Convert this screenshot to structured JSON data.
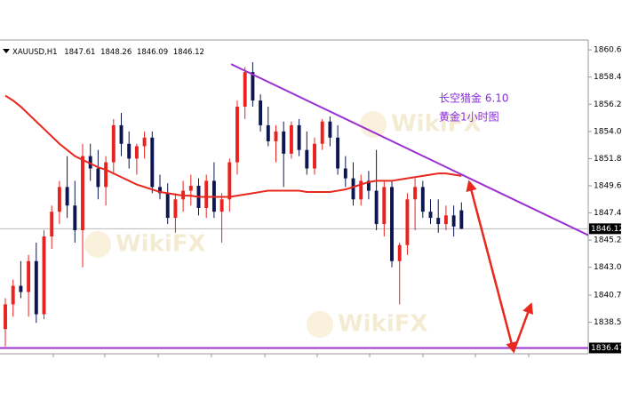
{
  "chart_data": {
    "type": "candlestick",
    "title": "XAUUSD,H1",
    "annotation": [
      "长空猎金  6.10",
      "黄金1小时图"
    ],
    "watermark": "WikiFX",
    "xlim": [
      -0.69,
      75.4
    ],
    "ylim": [
      1836.0,
      1861.4
    ],
    "yticks": [
      {
        "value": 1860.6,
        "label": "1860.60"
      },
      {
        "value": 1858.4,
        "label": "1858.40"
      },
      {
        "value": 1856.2,
        "label": "1856.20"
      },
      {
        "value": 1854,
        "label": "1854.00"
      },
      {
        "value": 1851.8,
        "label": "1851.80"
      },
      {
        "value": 1849.6,
        "label": "1849.60"
      },
      {
        "value": 1847.4,
        "label": "1847.40"
      },
      {
        "value": 1845.2,
        "label": "1845.20"
      },
      {
        "value": 1843,
        "label": "1843.00"
      },
      {
        "value": 1840.75,
        "label": "1840.75"
      },
      {
        "value": 1838.55,
        "label": "1838.55"
      }
    ],
    "up_color": "#e8221e",
    "down_color": "#0d1650",
    "candles": {
      "open": [
        1838,
        1840,
        1841.5,
        1841,
        1843.5,
        1839.2,
        1845.5,
        1847.5,
        1849.5,
        1848,
        1846,
        1852,
        1851,
        1849.5,
        1851.5,
        1854.5,
        1853,
        1851.8,
        1852.8,
        1853.5,
        1849.5,
        1849,
        1847,
        1848.5,
        1849.2,
        1849.6,
        1847.8,
        1850,
        1847.5,
        1848.5,
        1851.5,
        1856,
        1858.8,
        1856.5,
        1854.5,
        1853.2,
        1854,
        1852.2,
        1854.5,
        1852.5,
        1851,
        1853,
        1854.8,
        1853.5,
        1851,
        1850.2,
        1848.5,
        1850,
        1849.2,
        1846.5,
        1849.5,
        1843.5,
        1844.8,
        1848.5,
        1849.5,
        1847.5,
        1847,
        1846.5,
        1847.2,
        1847.61
      ],
      "high": [
        1840.5,
        1842,
        1843.5,
        1844,
        1845,
        1846,
        1848,
        1850,
        1852,
        1850,
        1853,
        1853,
        1852.5,
        1852,
        1855,
        1855.5,
        1854,
        1853,
        1854,
        1854,
        1850.5,
        1849.8,
        1849,
        1850,
        1850.5,
        1850.2,
        1850.5,
        1851.5,
        1849,
        1851.8,
        1856.5,
        1859.2,
        1859.6,
        1857,
        1856,
        1854.5,
        1854.8,
        1854.8,
        1855,
        1854,
        1853.5,
        1855,
        1855.2,
        1854.5,
        1852,
        1851.5,
        1850.5,
        1850.8,
        1852.5,
        1850,
        1850,
        1845,
        1849,
        1850.2,
        1850,
        1848.5,
        1848.5,
        1848,
        1848,
        1848.26
      ],
      "low": [
        1836.6,
        1839,
        1840.5,
        1839,
        1838.5,
        1838.8,
        1844.5,
        1846.5,
        1847,
        1845,
        1843,
        1850,
        1848.5,
        1848,
        1850.5,
        1852,
        1851,
        1850.5,
        1851.8,
        1849,
        1848.5,
        1846.5,
        1845.8,
        1847.5,
        1848,
        1847.2,
        1847,
        1847,
        1845,
        1847.5,
        1850.5,
        1855,
        1856,
        1854,
        1852.8,
        1851.5,
        1849.5,
        1851.8,
        1852,
        1850.5,
        1850.5,
        1852.5,
        1852.8,
        1850.5,
        1849.5,
        1848,
        1848,
        1848.5,
        1846,
        1845.5,
        1843,
        1840,
        1844,
        1846,
        1847,
        1846.5,
        1845.8,
        1846,
        1845.5,
        1846.09
      ],
      "close": [
        1840,
        1841.5,
        1841,
        1843.5,
        1839.2,
        1845.5,
        1847.5,
        1849.5,
        1848,
        1846,
        1852,
        1851,
        1849.5,
        1851.5,
        1854.5,
        1853,
        1851.8,
        1852.8,
        1853.5,
        1849.5,
        1849,
        1847,
        1848.5,
        1849.2,
        1849.6,
        1847.8,
        1850,
        1847.5,
        1848.5,
        1851.5,
        1856,
        1858.8,
        1856.5,
        1854.5,
        1853.2,
        1854,
        1852.2,
        1854.5,
        1852.5,
        1851,
        1853,
        1854.8,
        1853.5,
        1851,
        1850.2,
        1848.5,
        1850,
        1849.2,
        1846.5,
        1849.5,
        1843.5,
        1844.8,
        1848.5,
        1849.5,
        1847.5,
        1847,
        1846.5,
        1847.2,
        1846.3,
        1846.12
      ]
    },
    "ma": {
      "color": "#e8281e",
      "values": [
        1856.9,
        1856.5,
        1856,
        1855.4,
        1854.8,
        1854.2,
        1853.6,
        1853,
        1852.5,
        1852,
        1851.7,
        1851.4,
        1851.1,
        1850.9,
        1850.6,
        1850.3,
        1850,
        1849.7,
        1849.5,
        1849.3,
        1849.1,
        1849,
        1848.9,
        1848.8,
        1848.8,
        1848.7,
        1848.7,
        1848.7,
        1848.7,
        1848.7,
        1848.8,
        1848.9,
        1849,
        1849.1,
        1849.2,
        1849.2,
        1849.2,
        1849.2,
        1849.2,
        1849.1,
        1849.1,
        1849.1,
        1849.1,
        1849.2,
        1849.3,
        1849.5,
        1849.7,
        1849.9,
        1850,
        1850,
        1850,
        1850.1,
        1850.2,
        1850.3,
        1850.4,
        1850.5,
        1850.6,
        1850.6,
        1850.5,
        1850.4
      ]
    },
    "trendline": {
      "color": "#9b30d0",
      "x": [
        29.2,
        75.4
      ],
      "y": [
        1859.45,
        1845.6
      ]
    },
    "support": {
      "color": "#9b30d0",
      "value": 1836.47
    },
    "last_price": {
      "color": "#b8b8b8",
      "value": 1846.12
    },
    "arrow": {
      "color": "#e8281e",
      "x": [
        60,
        65.75,
        68
      ],
      "y": [
        1849.9,
        1836.2,
        1840
      ]
    }
  }
}
